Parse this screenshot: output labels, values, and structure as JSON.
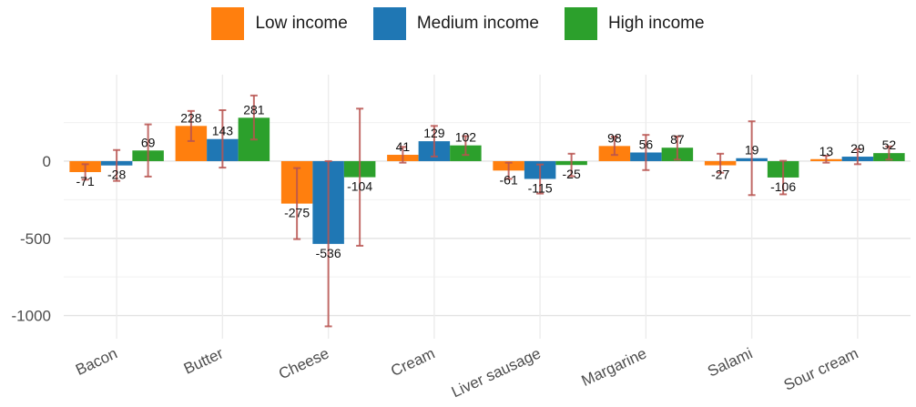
{
  "chart_data": {
    "type": "bar",
    "title": "",
    "xlabel": "",
    "ylabel": "",
    "categories": [
      "Bacon",
      "Butter",
      "Cheese",
      "Cream",
      "Liver sausage",
      "Margarine",
      "Salami",
      "Sour cream"
    ],
    "series": [
      {
        "name": "Low income",
        "color": "#ff7f0e",
        "values": [
          -71,
          228,
          -275,
          41,
          -61,
          98,
          -27,
          13
        ],
        "error_low": [
          -120,
          130,
          -505,
          -10,
          -115,
          40,
          -75,
          -10
        ],
        "error_high": [
          -20,
          325,
          -45,
          92,
          -10,
          158,
          48,
          35
        ]
      },
      {
        "name": "Medium income",
        "color": "#1f77b4",
        "values": [
          -28,
          143,
          -536,
          129,
          -115,
          56,
          19,
          29
        ],
        "error_low": [
          -128,
          -42,
          -1070,
          30,
          -210,
          -58,
          -220,
          -20
        ],
        "error_high": [
          72,
          330,
          0,
          228,
          -22,
          170,
          258,
          78
        ]
      },
      {
        "name": "High income",
        "color": "#2ca02c",
        "values": [
          69,
          281,
          -104,
          102,
          -25,
          87,
          -106,
          52
        ],
        "error_low": [
          -100,
          140,
          -548,
          40,
          -98,
          10,
          -215,
          10
        ],
        "error_high": [
          238,
          425,
          340,
          162,
          48,
          160,
          2,
          95
        ]
      }
    ],
    "data_labels": [
      [
        "-71",
        "228",
        "-275",
        "41",
        "-61",
        "98",
        "-27",
        "13"
      ],
      [
        "-28",
        "143",
        "-536",
        "129",
        "-115",
        "56",
        "19",
        "29"
      ],
      [
        "69",
        "281",
        "-104",
        "102",
        "-25",
        "87",
        "-106",
        "52"
      ]
    ],
    "ylim": [
      -1150,
      560
    ],
    "yticks": [
      0,
      -500,
      -1000
    ],
    "ytick_labels": [
      "0",
      "-500",
      "-1000"
    ],
    "grid": true,
    "legend_position": "top",
    "error_bar_color": "#b85450"
  }
}
